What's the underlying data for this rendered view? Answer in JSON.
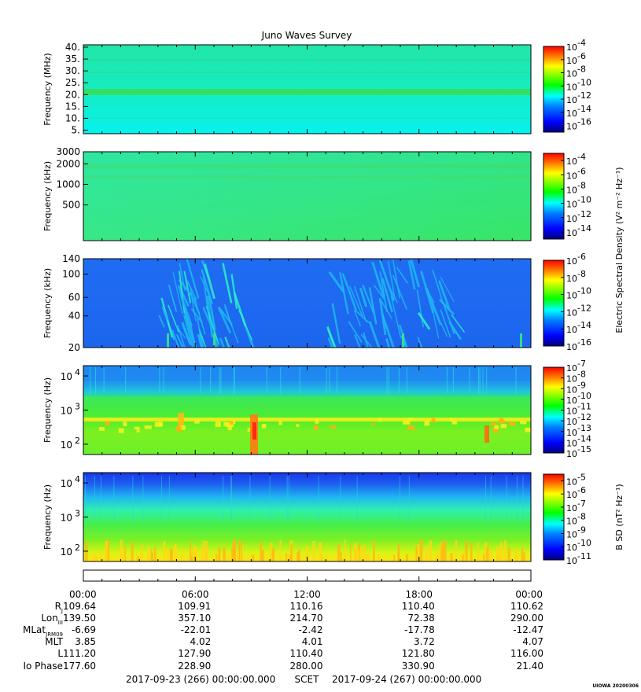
{
  "chart_data": {
    "type": "heatmap",
    "title": "Juno Waves Survey",
    "x_ticks": [
      "00:00",
      "06:00",
      "12:00",
      "18:00",
      "00:00"
    ],
    "time_range": {
      "start": "2017-09-23 (266) 00:00:00.000",
      "center_label": "SCET",
      "end": "2017-09-24 (267) 00:00:00.000"
    },
    "stamp": "UIOWA 20200306",
    "colorbar_shared_label": "Electric Spectral Density (V² m⁻² Hz⁻¹)",
    "panels": [
      {
        "ylabel": "Frequency (MHz)",
        "yticks": [
          "40.",
          "35.",
          "30.",
          "25.",
          "20.",
          "15.",
          "10.",
          "5."
        ],
        "ytick_values": [
          40,
          35,
          30,
          25,
          20,
          15,
          10,
          5
        ],
        "ylim": [
          3.5,
          41
        ],
        "yscale": "linear",
        "cb_ticks": [
          "-4",
          "-6",
          "-8",
          "-10",
          "-12",
          "-14",
          "-16"
        ],
        "cb_range": [
          -17,
          -4
        ],
        "cb_scale": "log"
      },
      {
        "ylabel": "Frequency (kHz)",
        "yticks": [
          "3000",
          "2000",
          "1000",
          "500"
        ],
        "ytick_values": [
          3000,
          2000,
          1000,
          500
        ],
        "ylim": [
          150,
          3000
        ],
        "yscale": "log",
        "cb_ticks": [
          "-4",
          "-6",
          "-8",
          "-10",
          "-12",
          "-14"
        ],
        "cb_range": [
          -15,
          -3
        ],
        "cb_scale": "log"
      },
      {
        "ylabel": "Frequency (kHz)",
        "yticks": [
          "140",
          "100",
          "60",
          "40",
          "20"
        ],
        "ytick_values": [
          140,
          100,
          60,
          40,
          20
        ],
        "ylim": [
          20,
          140
        ],
        "yscale": "log",
        "cb_ticks": [
          "-6",
          "-8",
          "-10",
          "-12",
          "-14",
          "-16"
        ],
        "cb_range": [
          -16,
          -6
        ],
        "cb_scale": "log"
      },
      {
        "ylabel": "Frequency (Hz)",
        "ytick_labels": [
          {
            "base": "10",
            "exp": "4",
            "value": 10000
          },
          {
            "base": "10",
            "exp": "3",
            "value": 1000
          },
          {
            "base": "10",
            "exp": "2",
            "value": 100
          }
        ],
        "ylim": [
          50,
          20000
        ],
        "yscale": "log",
        "cb_ticks": [
          "-7",
          "-8",
          "-9",
          "-10",
          "-11",
          "-12",
          "-13",
          "-14",
          "-15"
        ],
        "cb_range": [
          -15,
          -7
        ],
        "cb_scale": "log"
      },
      {
        "ylabel": "Frequency (Hz)",
        "ytick_labels": [
          {
            "base": "10",
            "exp": "4",
            "value": 10000
          },
          {
            "base": "10",
            "exp": "3",
            "value": 1000
          },
          {
            "base": "10",
            "exp": "2",
            "value": 100
          }
        ],
        "ylim": [
          50,
          20000
        ],
        "yscale": "log",
        "cb_label": "B SD (nT² Hz⁻¹)",
        "cb_ticks": [
          "-5",
          "-6",
          "-7",
          "-8",
          "-9",
          "-10",
          "-11"
        ],
        "cb_range": [
          -11,
          -4.5
        ],
        "cb_scale": "log"
      }
    ],
    "ephemeris": [
      {
        "label": "R",
        "sub": "J",
        "values": [
          "109.64",
          "109.91",
          "110.16",
          "110.40",
          "110.62"
        ]
      },
      {
        "label": "Lon",
        "sub": "III",
        "values": [
          "139.50",
          "357.10",
          "214.70",
          "72.38",
          "290.00"
        ]
      },
      {
        "label": "MLat",
        "sub": "JRM09",
        "values": [
          "-6.69",
          "-22.01",
          "-2.42",
          "-17.78",
          "-12.47"
        ]
      },
      {
        "label": "MLT",
        "sub": "",
        "values": [
          "3.85",
          "4.02",
          "4.01",
          "3.72",
          "4.07"
        ]
      },
      {
        "label": "L",
        "sub": "",
        "values": [
          "111.20",
          "127.90",
          "110.40",
          "121.80",
          "116.00"
        ]
      },
      {
        "label": "Io Phase",
        "sub": "",
        "values": [
          "177.60",
          "228.90",
          "280.00",
          "330.90",
          "21.40"
        ]
      }
    ],
    "colormap": [
      "#00007f",
      "#0000ff",
      "#007fff",
      "#00ffff",
      "#00ff00",
      "#7fff00",
      "#ffff00",
      "#ff7f00",
      "#ff0000"
    ]
  }
}
